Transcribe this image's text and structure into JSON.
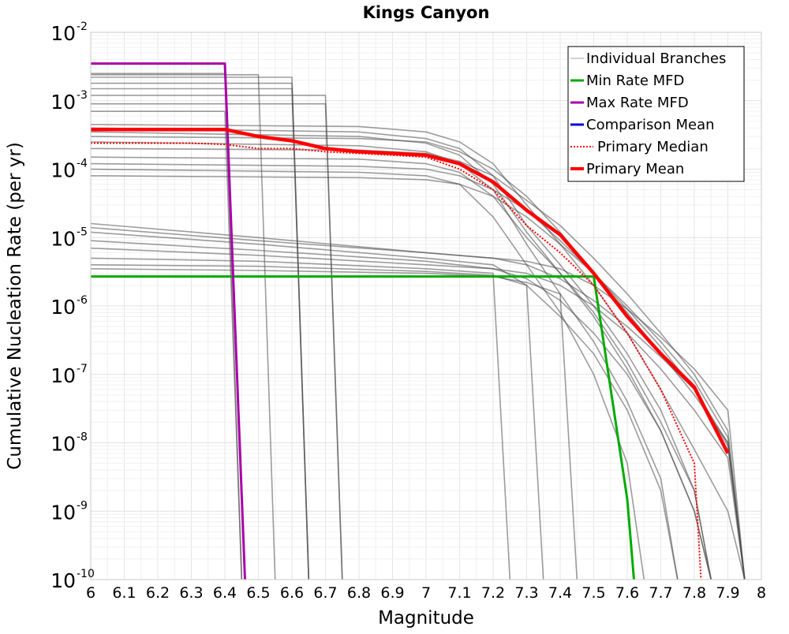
{
  "chart_data": {
    "type": "line",
    "title": "Kings Canyon",
    "xlabel": "Magnitude",
    "ylabel": "Cumulative Nucleation Rate (per yr)",
    "xlim": [
      6,
      8
    ],
    "ylim": [
      1e-10,
      0.01
    ],
    "y_scale": "log",
    "grid": true,
    "legend_position": "top-right",
    "x_ticks": [
      "6",
      "6.1",
      "6.2",
      "6.3",
      "6.4",
      "6.5",
      "6.6",
      "6.7",
      "6.8",
      "6.9",
      "7",
      "7.1",
      "7.2",
      "7.3",
      "7.4",
      "7.5",
      "7.6",
      "7.7",
      "7.8",
      "7.9",
      "8"
    ],
    "y_ticks": [
      {
        "base": "10",
        "exp": "-10"
      },
      {
        "base": "10",
        "exp": "-9"
      },
      {
        "base": "10",
        "exp": "-8"
      },
      {
        "base": "10",
        "exp": "-7"
      },
      {
        "base": "10",
        "exp": "-6"
      },
      {
        "base": "10",
        "exp": "-5"
      },
      {
        "base": "10",
        "exp": "-4"
      },
      {
        "base": "10",
        "exp": "-3"
      },
      {
        "base": "10",
        "exp": "-2"
      }
    ],
    "series": [
      {
        "name": "Individual Branches",
        "color": "#4d4d4d",
        "style": "solid",
        "branches": [
          {
            "x": [
              6,
              6.4,
              6.45
            ],
            "y": [
              0.0025,
              0.0025,
              1e-10
            ]
          },
          {
            "x": [
              6,
              6.5,
              6.55
            ],
            "y": [
              0.0024,
              0.0024,
              1e-10
            ]
          },
          {
            "x": [
              6,
              6.6,
              6.65
            ],
            "y": [
              0.0022,
              0.0022,
              1e-10
            ]
          },
          {
            "x": [
              6,
              6.6,
              6.65
            ],
            "y": [
              0.0018,
              0.0018,
              1e-10
            ]
          },
          {
            "x": [
              6,
              6.6,
              6.65
            ],
            "y": [
              0.0015,
              0.0015,
              1e-10
            ]
          },
          {
            "x": [
              6,
              6.7,
              6.75
            ],
            "y": [
              0.0012,
              0.0012,
              1e-10
            ]
          },
          {
            "x": [
              6,
              6.7,
              6.75
            ],
            "y": [
              0.0009,
              0.0009,
              1e-10
            ]
          },
          {
            "x": [
              6,
              6.4,
              6.45
            ],
            "y": [
              0.0007,
              0.0007,
              1e-10
            ]
          },
          {
            "x": [
              6,
              6.8,
              7.0,
              7.1,
              7.2,
              7.3,
              7.4,
              7.5,
              7.6,
              7.7,
              7.8,
              7.9,
              7.95
            ],
            "y": [
              0.00045,
              0.00042,
              0.00035,
              0.00025,
              0.00012,
              3e-05,
              8e-06,
              2e-06,
              4e-07,
              6e-08,
              8e-09,
              1e-09,
              1e-10
            ]
          },
          {
            "x": [
              6,
              6.8,
              7.0,
              7.1,
              7.2,
              7.3,
              7.4,
              7.5,
              7.6,
              7.7,
              7.8,
              7.85
            ],
            "y": [
              0.0004,
              0.00035,
              0.00028,
              0.0002,
              8e-05,
              1.5e-05,
              4e-06,
              1e-06,
              2e-07,
              3e-08,
              2e-09,
              1e-10
            ]
          },
          {
            "x": [
              6,
              6.8,
              7.0,
              7.1,
              7.2,
              7.3,
              7.4,
              7.5,
              7.6,
              7.7,
              7.8,
              7.9,
              7.95
            ],
            "y": [
              0.0003,
              0.00028,
              0.00025,
              0.00018,
              0.0001,
              4e-05,
              1.2e-05,
              3e-06,
              8e-07,
              2e-07,
              5e-08,
              1e-08,
              1e-10
            ]
          },
          {
            "x": [
              6,
              6.8,
              7.0,
              7.1,
              7.2,
              7.3,
              7.4,
              7.5,
              7.6,
              7.7,
              7.75
            ],
            "y": [
              0.00025,
              0.00022,
              0.00018,
              0.00012,
              5e-05,
              8e-06,
              1.5e-06,
              3e-07,
              4e-08,
              3e-09,
              1e-10
            ]
          },
          {
            "x": [
              6,
              6.8,
              7.0,
              7.1,
              7.2,
              7.3,
              7.4,
              7.5,
              7.6,
              7.7,
              7.8,
              7.9,
              7.95
            ],
            "y": [
              0.0002,
              0.00019,
              0.00017,
              0.00013,
              8e-05,
              3.5e-05,
              1.5e-05,
              5e-06,
              1.5e-06,
              4e-07,
              1e-07,
              1.5e-08,
              1e-10
            ]
          },
          {
            "x": [
              6,
              6.8,
              7.0,
              7.1,
              7.2,
              7.3,
              7.4,
              7.5,
              7.6,
              7.7,
              7.8,
              7.85
            ],
            "y": [
              0.00015,
              0.00014,
              0.00012,
              9e-05,
              4e-05,
              1e-05,
              3e-06,
              8e-07,
              1.5e-07,
              2e-08,
              2e-09,
              1e-10
            ]
          },
          {
            "x": [
              6,
              6.8,
              7.0,
              7.1,
              7.2,
              7.3,
              7.4,
              7.5,
              7.6,
              7.7,
              7.8,
              7.9,
              7.95
            ],
            "y": [
              0.00012,
              0.00011,
              0.0001,
              8e-05,
              5e-05,
              2.5e-05,
              9e-06,
              3e-06,
              9e-07,
              2.5e-07,
              6e-08,
              9e-09,
              1e-10
            ]
          },
          {
            "x": [
              6,
              6.8,
              7.0,
              7.1,
              7.2,
              7.3,
              7.4,
              7.5,
              7.6,
              7.65
            ],
            "y": [
              0.0001,
              9e-05,
              8e-05,
              6e-05,
              2e-05,
              4e-06,
              8e-07,
              1e-07,
              5e-09,
              1e-10
            ]
          },
          {
            "x": [
              6,
              6.8,
              7.0,
              7.1,
              7.2,
              7.3,
              7.4,
              7.5,
              7.6,
              7.7,
              7.8,
              7.9,
              7.95
            ],
            "y": [
              8e-05,
              7.5e-05,
              7e-05,
              6e-05,
              4e-05,
              2e-05,
              8e-06,
              3e-06,
              1e-06,
              3e-07,
              8e-08,
              1.2e-08,
              1e-10
            ]
          },
          {
            "x": [
              6,
              6.8,
              7.0,
              7.1,
              7.2,
              7.3,
              7.4,
              7.5,
              7.6,
              7.7,
              7.8,
              7.85
            ],
            "y": [
              0.00035,
              0.0003,
              0.00024,
              0.00016,
              6e-05,
              1.2e-05,
              3e-06,
              7e-07,
              1.2e-07,
              1.5e-08,
              1e-09,
              1e-10
            ]
          },
          {
            "x": [
              6,
              6.5,
              7.0,
              7.2,
              7.3,
              7.4,
              7.5,
              7.6,
              7.7,
              7.8,
              7.9,
              7.95
            ],
            "y": [
              1.6e-05,
              1e-05,
              6e-06,
              5e-06,
              4e-06,
              2.5e-06,
              1.2e-06,
              5e-07,
              1.8e-07,
              6e-08,
              1e-08,
              1e-10
            ]
          },
          {
            "x": [
              6,
              6.5,
              7.0,
              7.2,
              7.3,
              7.4,
              7.5,
              7.6,
              7.7,
              7.75
            ],
            "y": [
              1.2e-05,
              8e-06,
              5e-06,
              4e-06,
              2e-06,
              7e-07,
              2e-07,
              3e-08,
              2e-09,
              1e-10
            ]
          },
          {
            "x": [
              6,
              6.5,
              7.0,
              7.2,
              7.3,
              7.4,
              7.5,
              7.6,
              7.7,
              7.8,
              7.85
            ],
            "y": [
              9e-06,
              6.5e-06,
              4.5e-06,
              3.5e-06,
              2.5e-06,
              1.2e-06,
              4e-07,
              1e-07,
              1.5e-08,
              1e-09,
              1e-10
            ]
          },
          {
            "x": [
              6,
              6.5,
              7.0,
              7.2,
              7.3,
              7.4,
              7.5,
              7.6,
              7.7,
              7.8,
              7.9,
              7.95
            ],
            "y": [
              7e-06,
              5.5e-06,
              4e-06,
              3.5e-06,
              3e-06,
              2e-06,
              1e-06,
              4e-07,
              1.2e-07,
              3e-08,
              6e-09,
              1e-10
            ]
          },
          {
            "x": [
              6,
              6.5,
              7.0,
              7.2,
              7.25
            ],
            "y": [
              5e-06,
              4.5e-06,
              3.5e-06,
              3e-06,
              1e-10
            ]
          },
          {
            "x": [
              6,
              6.5,
              7.0,
              7.2,
              7.3,
              7.35
            ],
            "y": [
              4e-06,
              3.8e-06,
              3.2e-06,
              2.8e-06,
              2e-06,
              1e-10
            ]
          },
          {
            "x": [
              6,
              6.5,
              7.0,
              7.2,
              7.3,
              7.4,
              7.45
            ],
            "y": [
              3.5e-06,
              3.3e-06,
              3e-06,
              2.7e-06,
              2.2e-06,
              1.5e-06,
              1e-10
            ]
          },
          {
            "x": [
              6,
              6.5,
              7.0,
              7.2,
              7.3,
              7.4,
              7.5,
              7.6,
              7.7,
              7.8,
              7.9,
              7.95
            ],
            "y": [
              1.4e-05,
              9e-06,
              6e-06,
              5e-06,
              4.5e-06,
              3.5e-06,
              2e-06,
              9e-07,
              3.5e-07,
              1.2e-07,
              3e-08,
              1e-10
            ]
          }
        ]
      },
      {
        "name": "Min Rate MFD",
        "color": "#00aa00",
        "style": "solid",
        "x": [
          6,
          7.5,
          7.6,
          7.62
        ],
        "y": [
          2.7e-06,
          2.7e-06,
          1.5e-09,
          1e-10
        ]
      },
      {
        "name": "Max Rate MFD",
        "color": "#aa00aa",
        "style": "solid",
        "x": [
          6,
          6.4,
          6.46
        ],
        "y": [
          0.0035,
          0.0035,
          1e-10
        ]
      },
      {
        "name": "Comparison Mean",
        "color": "#0000dd",
        "style": "solid",
        "x": [],
        "y": []
      },
      {
        "name": "Primary Median",
        "color": "#ff0000",
        "style": "dotted",
        "x": [
          6,
          6.3,
          6.4,
          6.5,
          6.6,
          6.7,
          6.8,
          6.9,
          7.0,
          7.1,
          7.2,
          7.3,
          7.4,
          7.5,
          7.6,
          7.7,
          7.8,
          7.82
        ],
        "y": [
          0.00024,
          0.00024,
          0.00023,
          0.0002,
          0.0002,
          0.00018,
          0.00017,
          0.00016,
          0.00015,
          0.0001,
          5e-05,
          1.5e-05,
          6e-06,
          2e-06,
          4e-07,
          6e-08,
          5e-09,
          1e-10
        ]
      },
      {
        "name": "Primary Mean",
        "color": "#ff0000",
        "style": "solid",
        "x": [
          6,
          6.4,
          6.5,
          6.6,
          6.7,
          6.8,
          6.9,
          7.0,
          7.1,
          7.2,
          7.3,
          7.4,
          7.5,
          7.6,
          7.7,
          7.8,
          7.9
        ],
        "y": [
          0.00038,
          0.00038,
          0.0003,
          0.00026,
          0.0002,
          0.00018,
          0.00017,
          0.00016,
          0.00012,
          6.5e-05,
          2.5e-05,
          1.1e-05,
          3e-06,
          7e-07,
          2e-07,
          6.5e-08,
          7e-09
        ]
      }
    ]
  }
}
